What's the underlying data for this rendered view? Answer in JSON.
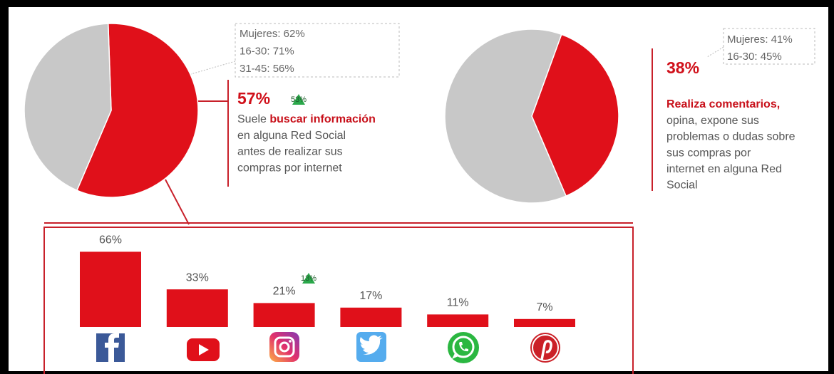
{
  "chart_data": [
    {
      "type": "pie",
      "values": [
        57,
        43
      ],
      "value_labels": [
        "57%",
        null
      ],
      "colors": [
        "#e0101a",
        "#c8c8c8"
      ],
      "annotation_lines": [
        "Mujeres: 62%",
        "16-30: 71%",
        "31-45: 56%"
      ],
      "badge": "53%",
      "lead": "Suele ",
      "highlight": "buscar información",
      "text_lines": [
        "en alguna Red Social",
        "antes de realizar sus",
        "compras por internet"
      ]
    },
    {
      "type": "pie",
      "values": [
        38,
        62
      ],
      "value_labels": [
        "38%",
        null
      ],
      "colors": [
        "#e0101a",
        "#c8c8c8"
      ],
      "annotation_lines": [
        "Mujeres: 41%",
        "16-30: 45%"
      ],
      "highlight": "Realiza comentarios,",
      "text_lines": [
        "opina, expone sus",
        "problemas o dudas sobre",
        "sus compras por",
        "internet en alguna Red",
        "Social"
      ]
    },
    {
      "type": "bar",
      "categories": [
        null,
        null,
        null,
        null,
        null,
        null
      ],
      "values": [
        66,
        33,
        21,
        17,
        11,
        7
      ],
      "value_labels": [
        "66%",
        "33%",
        "21%",
        "17%",
        "11%",
        "7%"
      ],
      "color": "#e0101a",
      "badge": "13%"
    }
  ]
}
